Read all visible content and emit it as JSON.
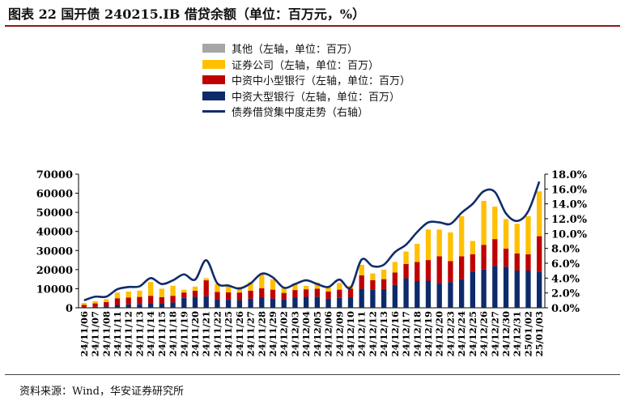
{
  "title": "图表 22  国开债 240215.IB 借贷余额（单位：百万元，%）",
  "source": "资料来源：Wind，华安证券研究所",
  "chart_data": {
    "type": "bar",
    "stacked": true,
    "categories": [
      "24/11/06",
      "24/11/07",
      "24/11/08",
      "24/11/11",
      "24/11/12",
      "24/11/13",
      "24/11/14",
      "24/11/15",
      "24/11/18",
      "24/11/19",
      "24/11/20",
      "24/11/21",
      "24/11/22",
      "24/11/25",
      "24/11/26",
      "24/11/27",
      "24/11/28",
      "24/11/29",
      "24/12/02",
      "24/12/03",
      "24/12/04",
      "24/12/05",
      "24/12/06",
      "24/12/09",
      "24/12/10",
      "24/12/11",
      "24/12/12",
      "24/12/13",
      "24/12/16",
      "24/12/17",
      "24/12/18",
      "24/12/19",
      "24/12/20",
      "24/12/23",
      "24/12/24",
      "24/12/25",
      "24/12/26",
      "24/12/27",
      "24/12/30",
      "24/12/31",
      "25/01/02",
      "25/01/03"
    ],
    "series": [
      {
        "name": "中资大型银行（左轴，单位：百万）",
        "color": "#0d2a6b",
        "axis": "left",
        "values": [
          0,
          500,
          800,
          1500,
          1800,
          2000,
          2500,
          2300,
          2800,
          5200,
          5800,
          6000,
          4600,
          4200,
          4000,
          4800,
          5500,
          4800,
          4500,
          5500,
          5700,
          5800,
          4800,
          5200,
          5500,
          10000,
          9500,
          9800,
          12000,
          15500,
          14000,
          14200,
          13000,
          13500,
          15000,
          19000,
          20000,
          22000,
          21500,
          19500,
          19500,
          19000
        ]
      },
      {
        "name": "中资中小型银行（左轴，单位：百万）",
        "color": "#c00000",
        "axis": "left",
        "values": [
          1500,
          1800,
          2200,
          3500,
          3600,
          3700,
          3800,
          3300,
          3500,
          2800,
          3100,
          8400,
          3700,
          3900,
          4000,
          4200,
          4800,
          4700,
          3300,
          3800,
          4000,
          4200,
          3700,
          4300,
          4500,
          7000,
          5000,
          5200,
          6500,
          7500,
          10000,
          10800,
          14000,
          11000,
          12000,
          9000,
          13000,
          14000,
          9500,
          9000,
          8500,
          18500
        ]
      },
      {
        "name": "证券公司（左轴，单位：百万）",
        "color": "#ffc000",
        "axis": "left",
        "values": [
          1000,
          1200,
          1500,
          3000,
          3100,
          3300,
          7200,
          4400,
          5200,
          1500,
          2200,
          1100,
          4200,
          3500,
          3000,
          4400,
          7700,
          5500,
          2700,
          3400,
          1800,
          3200,
          2500,
          3500,
          1500,
          5500,
          3500,
          5000,
          5500,
          6500,
          9500,
          16000,
          14000,
          15000,
          21000,
          7000,
          23000,
          17000,
          15500,
          15500,
          20000,
          23500
        ]
      },
      {
        "name": "其他（左轴，单位：百万）",
        "color": "#a6a6a6",
        "axis": "left",
        "values": [
          0,
          0,
          0,
          0,
          0,
          0,
          0,
          0,
          0,
          0,
          0,
          0,
          0,
          0,
          0,
          0,
          0,
          0,
          0,
          0,
          0,
          0,
          0,
          0,
          0,
          0,
          0,
          0,
          0,
          0,
          0,
          0,
          0,
          0,
          0,
          0,
          0,
          0,
          0,
          0,
          0,
          0
        ]
      },
      {
        "name": "债券借贷集中度走势（右轴）",
        "color": "#102c6b",
        "axis": "right",
        "type": "line",
        "values": [
          1.0,
          1.5,
          1.5,
          2.5,
          2.8,
          2.9,
          4.0,
          3.2,
          3.7,
          4.5,
          3.8,
          6.4,
          3.3,
          3.0,
          2.6,
          3.3,
          4.6,
          4.1,
          2.7,
          3.2,
          3.7,
          3.2,
          2.8,
          3.8,
          2.7,
          6.5,
          5.6,
          5.8,
          7.5,
          8.5,
          10.2,
          11.5,
          11.5,
          11.3,
          12.8,
          14.0,
          15.7,
          15.6,
          12.7,
          11.7,
          13.0,
          17.0
        ]
      }
    ],
    "left_axis": {
      "min": 0,
      "max": 70000,
      "ticks": [
        "0",
        "10000",
        "20000",
        "30000",
        "40000",
        "50000",
        "60000",
        "70000"
      ]
    },
    "right_axis": {
      "min": 0,
      "max": 18,
      "ticks": [
        "0.0%",
        "2.0%",
        "4.0%",
        "6.0%",
        "8.0%",
        "10.0%",
        "12.0%",
        "14.0%",
        "16.0%",
        "18.0%"
      ]
    },
    "legend_order": [
      3,
      2,
      1,
      0,
      4
    ]
  }
}
